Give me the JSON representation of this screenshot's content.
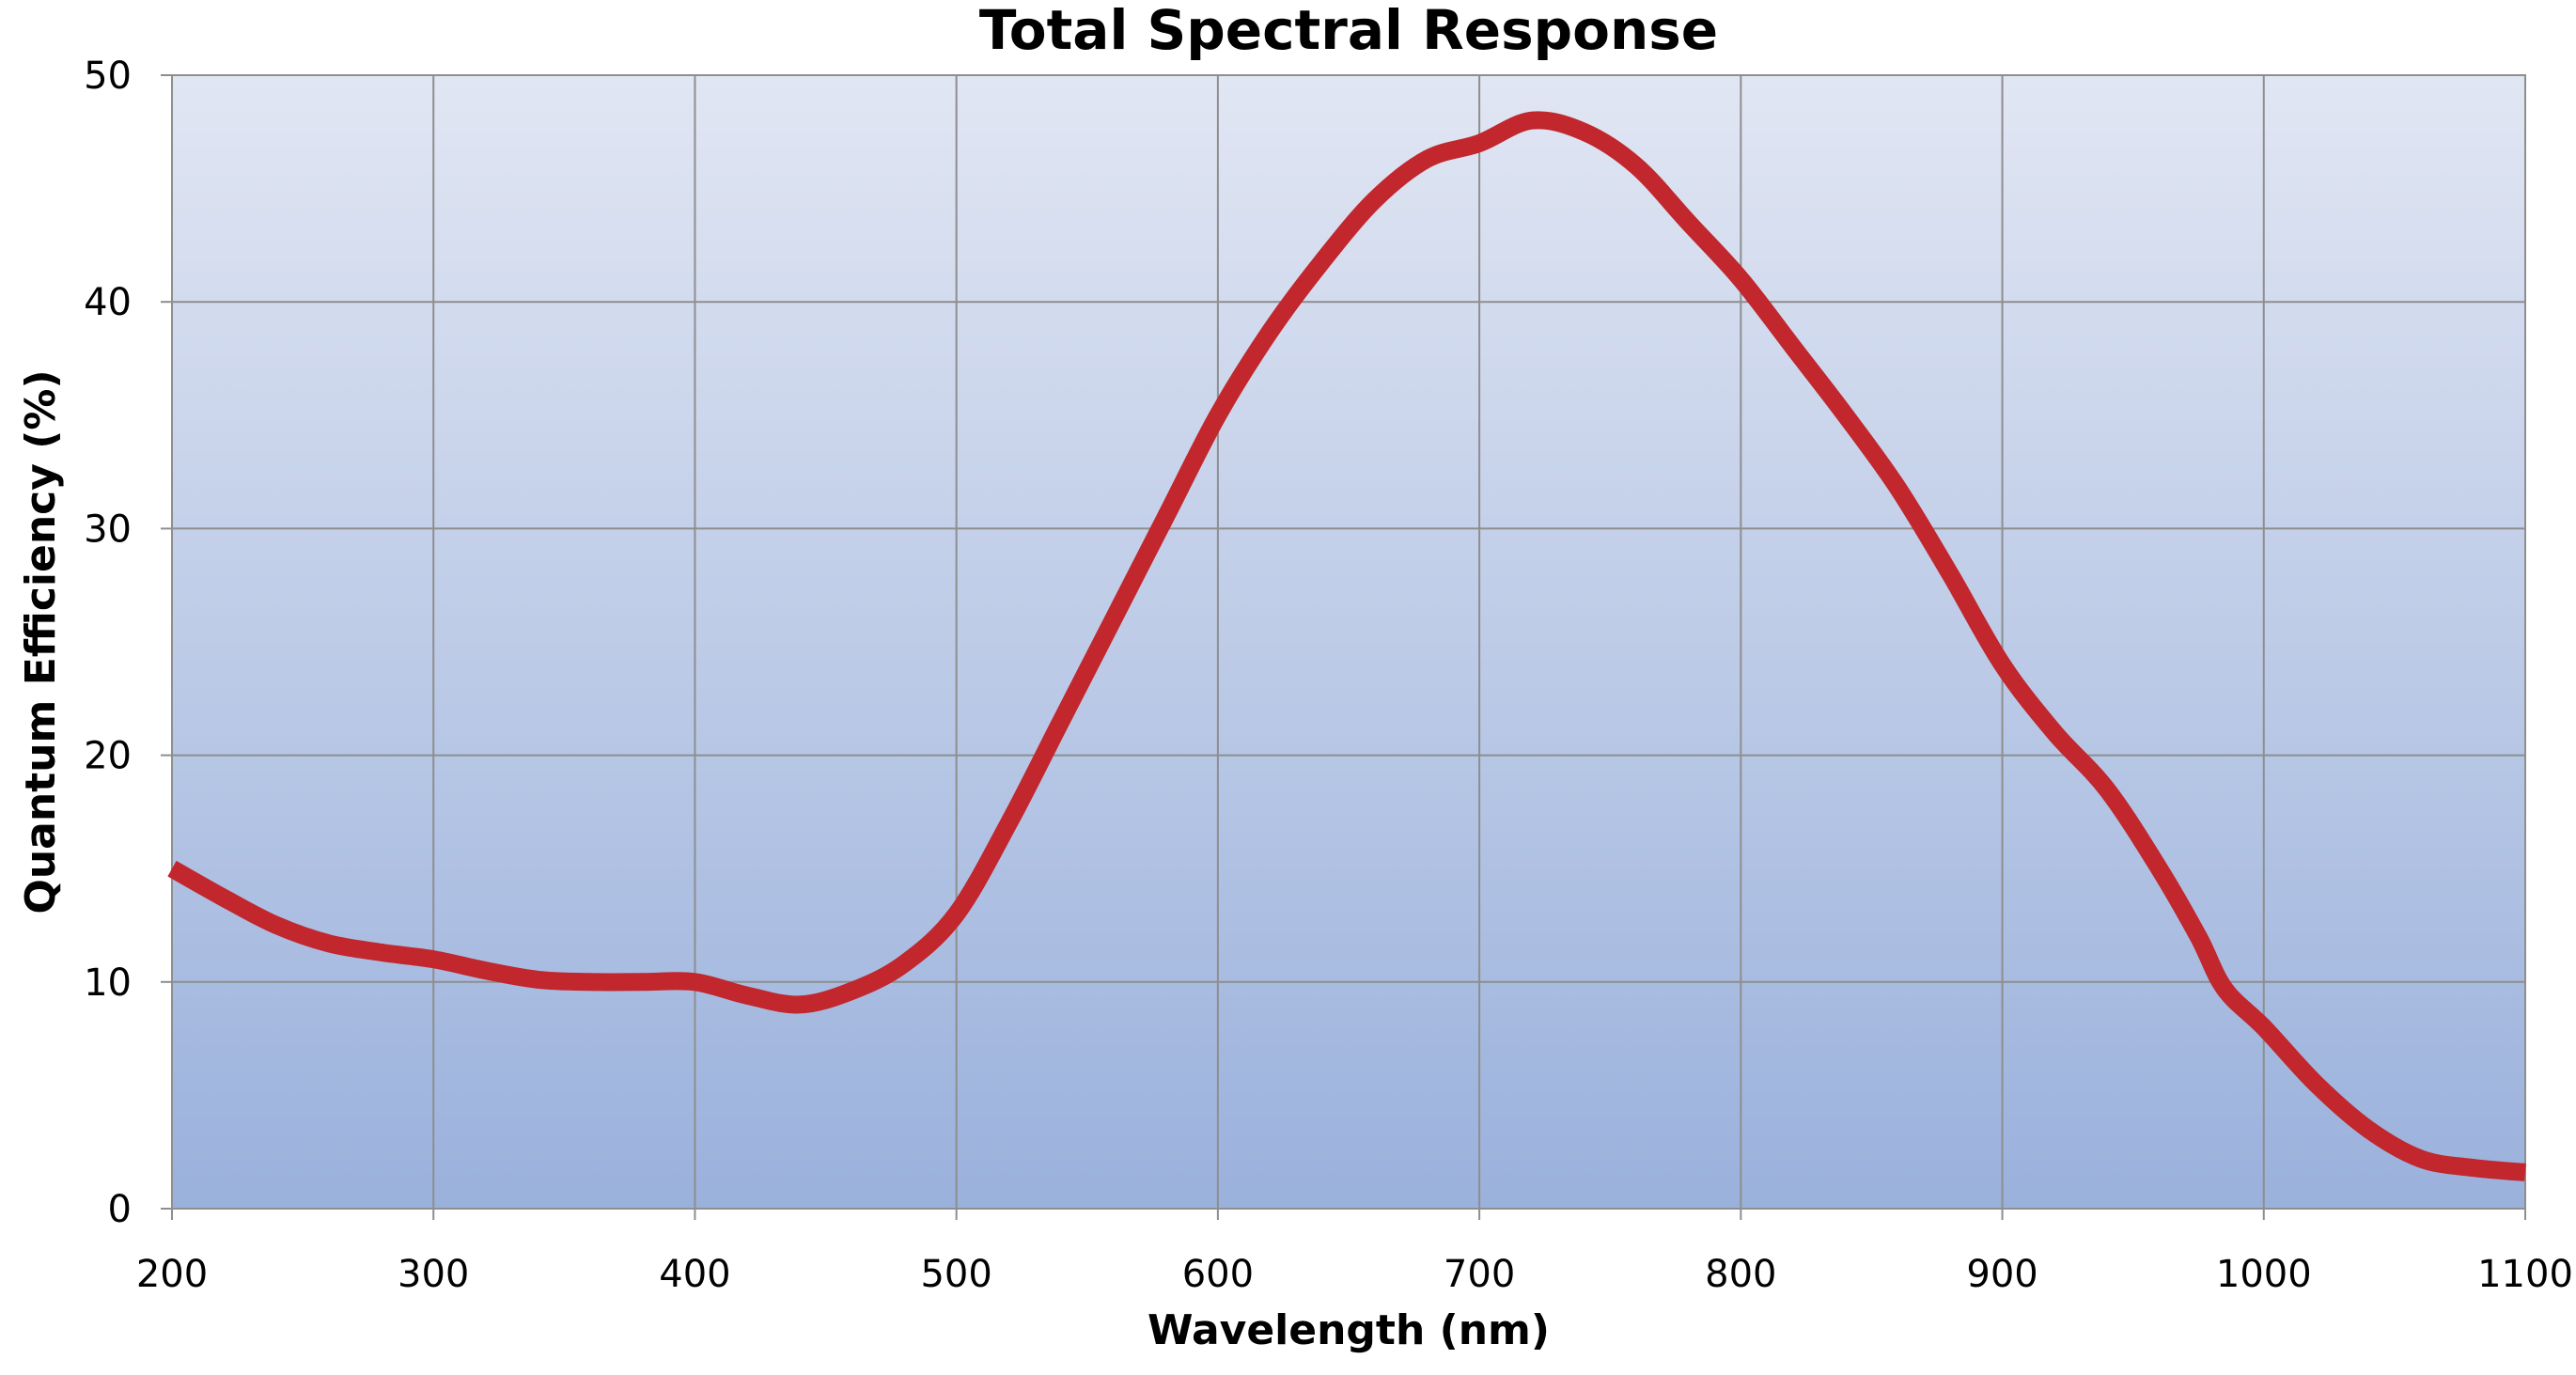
{
  "chart_data": {
    "type": "line",
    "title": "Total Spectral Response",
    "xlabel": "Wavelength (nm)",
    "ylabel": "Quantum Efficiency (%)",
    "xlim": [
      200,
      1100
    ],
    "ylim": [
      0,
      50
    ],
    "x_ticks": [
      "200",
      "300",
      "400",
      "500",
      "600",
      "700",
      "800",
      "900",
      "1000",
      "1100"
    ],
    "y_ticks": [
      "0",
      "10",
      "20",
      "30",
      "40",
      "50"
    ],
    "grid": true,
    "legend": "none",
    "series": [
      {
        "x": [
          200,
          220,
          240,
          260,
          280,
          300,
          320,
          340,
          360,
          380,
          400,
          420,
          440,
          460,
          480,
          500,
          520,
          540,
          560,
          580,
          600,
          620,
          640,
          660,
          680,
          700,
          720,
          740,
          760,
          780,
          800,
          820,
          840,
          860,
          880,
          900,
          920,
          940,
          960,
          975,
          985,
          1000,
          1020,
          1040,
          1060,
          1080,
          1100
        ],
        "y": [
          15,
          13.7,
          12.5,
          11.7,
          11.3,
          11,
          10.5,
          10.1,
          10,
          10,
          10,
          9.4,
          9,
          9.6,
          10.8,
          13,
          17,
          21.5,
          26,
          30.5,
          35,
          38.7,
          41.8,
          44.5,
          46.3,
          47,
          48,
          47.5,
          46,
          43.5,
          41,
          38,
          35,
          31.8,
          28,
          24,
          21,
          18.5,
          15,
          12,
          9.7,
          8,
          5.5,
          3.5,
          2.2,
          1.8,
          1.6
        ],
        "color": "#C1272D"
      }
    ],
    "colors": {
      "line": "#C1272D",
      "plot_bg_top": "#E1E6F3",
      "plot_bg_bottom": "#9AB1DC",
      "grid": "#8E8E8E"
    }
  }
}
